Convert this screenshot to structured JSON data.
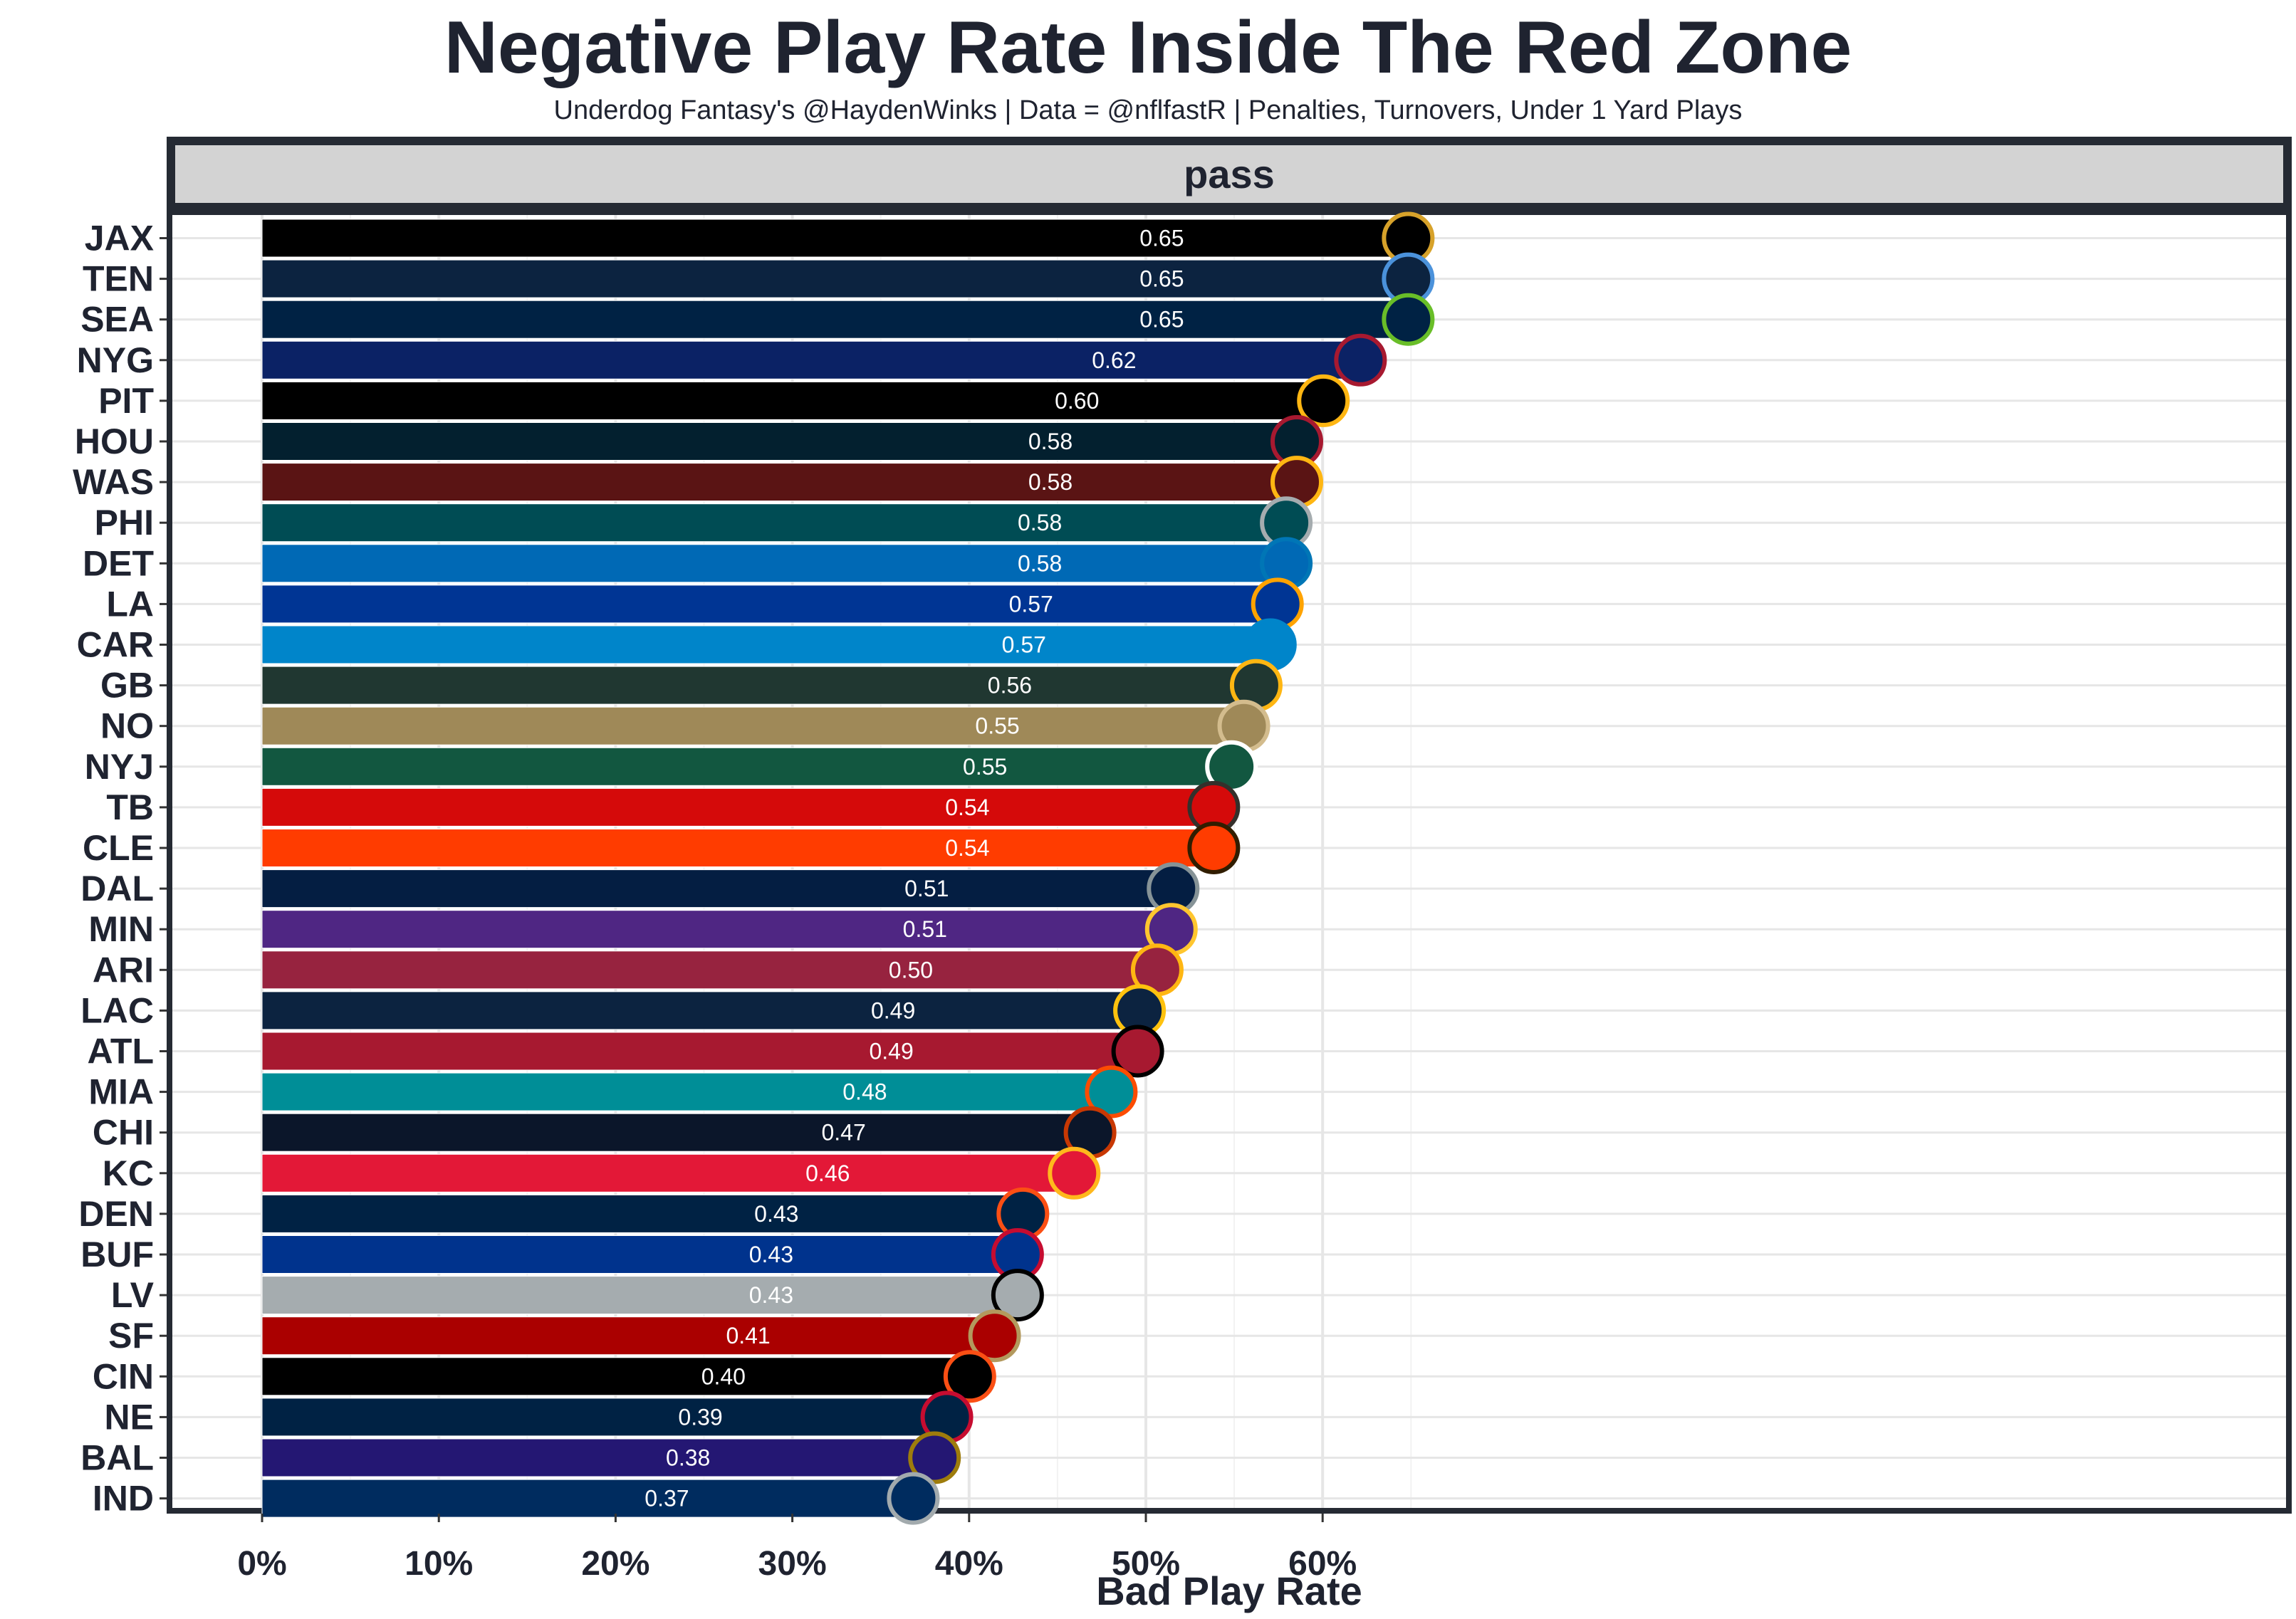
{
  "title": "Negative Play Rate Inside The Red Zone",
  "subtitle": "Underdog Fantasy's @HaydenWinks | Data = @nflfastR | Penalties, Turnovers, Under 1 Yard Plays",
  "chart_data": {
    "type": "bar",
    "orientation": "horizontal",
    "facet_label": "pass",
    "xlabel": "Bad Play Rate",
    "ylabel": "",
    "xlim": [
      -0.03,
      0.68
    ],
    "x_ticks": [
      0,
      0.1,
      0.2,
      0.3,
      0.4,
      0.5,
      0.6
    ],
    "x_tick_labels": [
      "0%",
      "10%",
      "20%",
      "30%",
      "40%",
      "50%",
      "60%"
    ],
    "grid": true,
    "categories": [
      "JAX",
      "TEN",
      "SEA",
      "NYG",
      "PIT",
      "HOU",
      "WAS",
      "PHI",
      "DET",
      "LA",
      "CAR",
      "GB",
      "NO",
      "NYJ",
      "TB",
      "CLE",
      "DAL",
      "MIN",
      "ARI",
      "LAC",
      "ATL",
      "MIA",
      "CHI",
      "KC",
      "DEN",
      "BUF",
      "LV",
      "SF",
      "CIN",
      "NE",
      "BAL",
      "IND"
    ],
    "values": [
      0.646,
      0.646,
      0.646,
      0.619,
      0.598,
      0.583,
      0.583,
      0.577,
      0.577,
      0.572,
      0.568,
      0.56,
      0.553,
      0.546,
      0.536,
      0.536,
      0.513,
      0.512,
      0.504,
      0.494,
      0.493,
      0.478,
      0.466,
      0.457,
      0.428,
      0.425,
      0.425,
      0.412,
      0.398,
      0.385,
      0.378,
      0.366
    ],
    "value_labels": [
      "0.65",
      "0.65",
      "0.65",
      "0.62",
      "0.60",
      "0.58",
      "0.58",
      "0.58",
      "0.58",
      "0.57",
      "0.57",
      "0.56",
      "0.55",
      "0.55",
      "0.54",
      "0.54",
      "0.51",
      "0.51",
      "0.50",
      "0.49",
      "0.49",
      "0.48",
      "0.47",
      "0.46",
      "0.43",
      "0.43",
      "0.43",
      "0.41",
      "0.40",
      "0.39",
      "0.38",
      "0.37"
    ],
    "bar_colors": [
      "#000000",
      "#0c2340",
      "#002244",
      "#0b2265",
      "#000000",
      "#03202f",
      "#5a1414",
      "#004c54",
      "#0069b5",
      "#003594",
      "#0085ca",
      "#203731",
      "#9f8958",
      "#125740",
      "#d50a0a",
      "#ff3c00",
      "#041e42",
      "#4f2683",
      "#97233f",
      "#0c2340",
      "#a71930",
      "#008e97",
      "#0b162a",
      "#e31837",
      "#002244",
      "#00338d",
      "#a5acaf",
      "#aa0000",
      "#000000",
      "#002244",
      "#241773",
      "#002c5f"
    ],
    "team_icons": [
      "jaguars-logo",
      "titans-logo",
      "seahawks-logo",
      "giants-logo",
      "steelers-logo",
      "texans-logo",
      "commanders-logo",
      "eagles-logo",
      "lions-logo",
      "rams-logo",
      "panthers-logo",
      "packers-logo",
      "saints-logo",
      "jets-logo",
      "buccaneers-logo",
      "browns-logo",
      "cowboys-logo",
      "vikings-logo",
      "cardinals-logo",
      "chargers-logo",
      "falcons-logo",
      "dolphins-logo",
      "bears-logo",
      "chiefs-logo",
      "broncos-logo",
      "bills-logo",
      "raiders-logo",
      "49ers-logo",
      "bengals-logo",
      "patriots-logo",
      "ravens-logo",
      "colts-logo"
    ],
    "icon_colors": [
      "#d7a22a",
      "#4b92db",
      "#69be28",
      "#a71930",
      "#ffb612",
      "#a71930",
      "#ffb612",
      "#a5acaf",
      "#0076b6",
      "#ffa300",
      "#0085ca",
      "#ffb612",
      "#d3bc8d",
      "#ffffff",
      "#34302b",
      "#311d00",
      "#869397",
      "#ffc62f",
      "#ffb612",
      "#ffc20e",
      "#000000",
      "#fc4c02",
      "#c83803",
      "#ffb81c",
      "#fb4f14",
      "#c60c30",
      "#000000",
      "#b3995d",
      "#fb4f14",
      "#c60c30",
      "#9e7c0c",
      "#a2aaad"
    ]
  }
}
